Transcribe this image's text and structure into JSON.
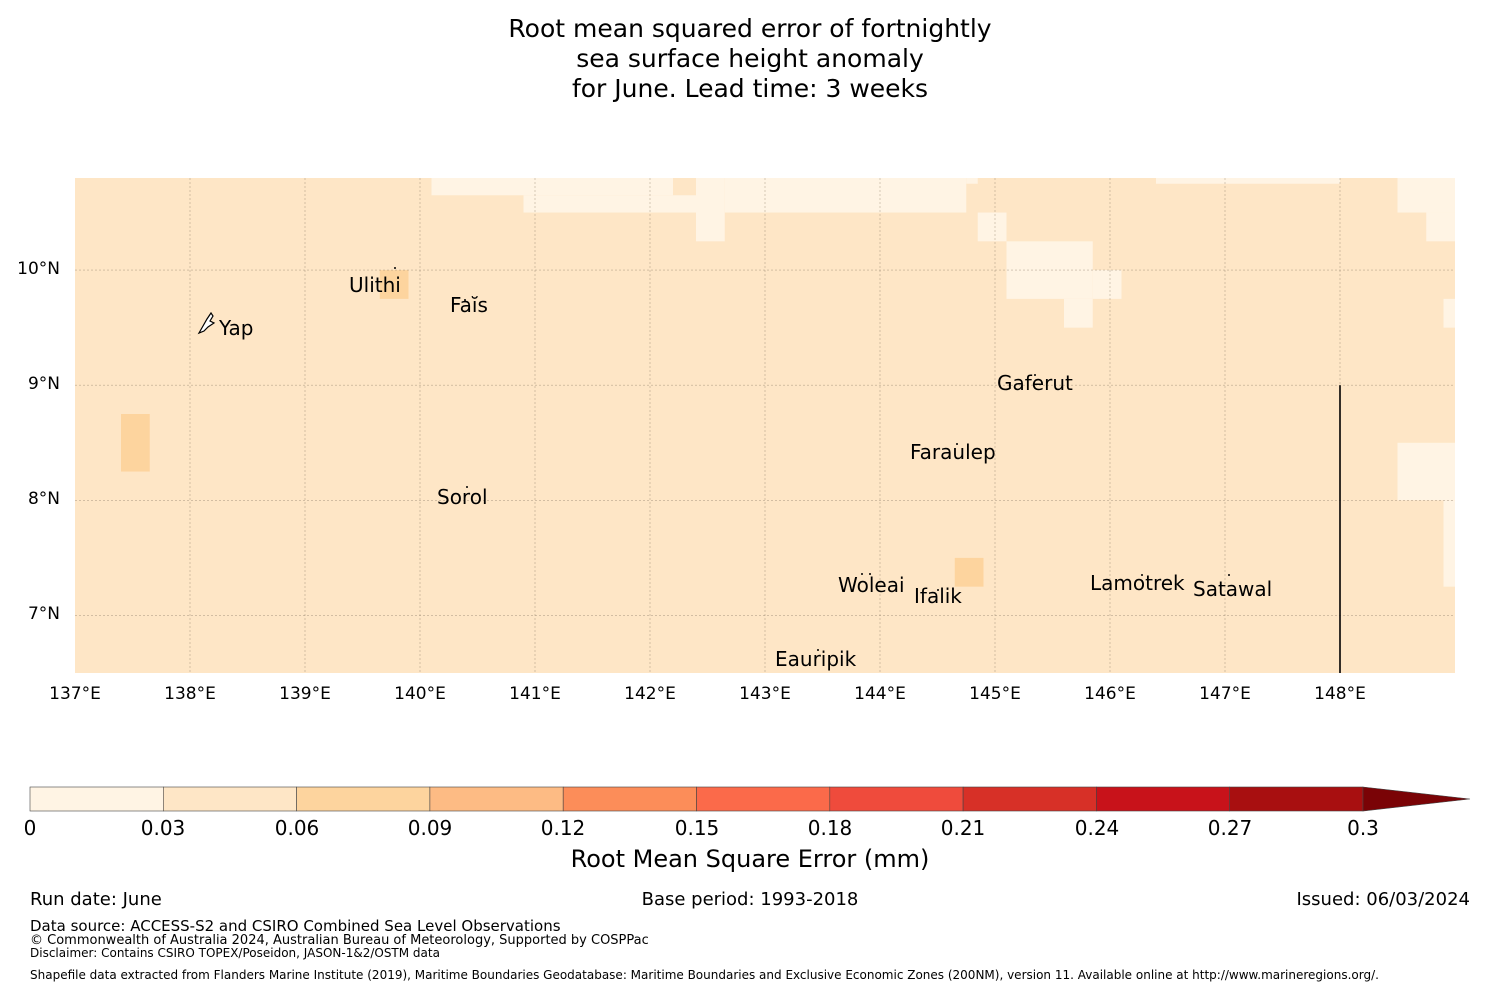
{
  "title": {
    "line1": "Root mean squared error of fortnightly",
    "line2": "sea surface height anomaly",
    "line3": "for June. Lead time: 3 weeks"
  },
  "map": {
    "lon_range": [
      137,
      149
    ],
    "lat_range": [
      6.5,
      10.8
    ],
    "background_color": "#fee6c6",
    "lat_ticks": [
      "10°N",
      "9°N",
      "8°N",
      "7°N"
    ],
    "lon_ticks": [
      "137°E",
      "138°E",
      "139°E",
      "140°E",
      "141°E",
      "142°E",
      "143°E",
      "144°E",
      "145°E",
      "146°E",
      "147°E",
      "148°E"
    ],
    "places": [
      {
        "name": "Ulithi"
      },
      {
        "name": "Faĭs"
      },
      {
        "name": "Yap"
      },
      {
        "name": "Gaferut"
      },
      {
        "name": "Faraulep"
      },
      {
        "name": "Sorol"
      },
      {
        "name": "Woleai"
      },
      {
        "name": "Ifalik"
      },
      {
        "name": "Lamotrek"
      },
      {
        "name": "Satawal"
      },
      {
        "name": "Eauripik"
      }
    ],
    "boundary_line": {
      "lon": 148.0,
      "lat_from": 6.5,
      "lat_to": 9.0
    },
    "anomaly_cells": [
      {
        "lon": [
          140.1,
          142.2
        ],
        "lat": [
          10.65,
          10.8
        ],
        "value_bin": "0-0.03"
      },
      {
        "lon": [
          140.9,
          142.4
        ],
        "lat": [
          10.5,
          10.65
        ],
        "value_bin": "0-0.03"
      },
      {
        "lon": [
          142.4,
          142.65
        ],
        "lat": [
          10.25,
          10.8
        ],
        "value_bin": "0-0.03"
      },
      {
        "lon": [
          142.65,
          144.75
        ],
        "lat": [
          10.5,
          10.8
        ],
        "value_bin": "0-0.03"
      },
      {
        "lon": [
          144.75,
          144.85
        ],
        "lat": [
          10.75,
          10.8
        ],
        "value_bin": "0-0.03"
      },
      {
        "lon": [
          144.85,
          145.1
        ],
        "lat": [
          10.25,
          10.5
        ],
        "value_bin": "0-0.03"
      },
      {
        "lon": [
          145.1,
          145.85
        ],
        "lat": [
          9.75,
          10.25
        ],
        "value_bin": "0-0.03"
      },
      {
        "lon": [
          145.85,
          146.1
        ],
        "lat": [
          9.75,
          10.0
        ],
        "value_bin": "0-0.03"
      },
      {
        "lon": [
          145.6,
          145.85
        ],
        "lat": [
          9.5,
          9.75
        ],
        "value_bin": "0-0.03"
      },
      {
        "lon": [
          146.4,
          148.0
        ],
        "lat": [
          10.75,
          10.8
        ],
        "value_bin": "0-0.03"
      },
      {
        "lon": [
          148.5,
          149.0
        ],
        "lat": [
          10.5,
          10.8
        ],
        "value_bin": "0-0.03"
      },
      {
        "lon": [
          148.75,
          149.0
        ],
        "lat": [
          10.25,
          10.5
        ],
        "value_bin": "0-0.03"
      },
      {
        "lon": [
          149.0,
          149.0
        ],
        "lat": [
          9.75,
          10.25
        ],
        "value_bin": "0-0.03"
      },
      {
        "lon": [
          148.9,
          149.0
        ],
        "lat": [
          9.5,
          9.75
        ],
        "value_bin": "0-0.03"
      },
      {
        "lon": [
          148.5,
          149.0
        ],
        "lat": [
          8.0,
          8.5
        ],
        "value_bin": "0-0.03"
      },
      {
        "lon": [
          148.9,
          149.0
        ],
        "lat": [
          7.25,
          8.0
        ],
        "value_bin": "0-0.03"
      },
      {
        "lon": [
          137.4,
          137.65
        ],
        "lat": [
          8.25,
          8.75
        ],
        "value_bin": "0.06-0.09"
      },
      {
        "lon": [
          139.65,
          139.9
        ],
        "lat": [
          9.75,
          10.0
        ],
        "value_bin": "0.06-0.09"
      },
      {
        "lon": [
          144.65,
          144.9
        ],
        "lat": [
          7.25,
          7.5
        ],
        "value_bin": "0.06-0.09"
      }
    ]
  },
  "colorbar": {
    "label": "Root Mean Square Error (mm)",
    "ticks": [
      "0",
      "0.03",
      "0.06",
      "0.09",
      "0.12",
      "0.15",
      "0.18",
      "0.21",
      "0.24",
      "0.27",
      "0.3"
    ],
    "colors": [
      "#fff4e4",
      "#fee6c6",
      "#fdd49e",
      "#fdbb84",
      "#fc8d59",
      "#fb6a4a",
      "#ef4b3c",
      "#d73027",
      "#c8121a",
      "#a80f10",
      "#7a0306"
    ],
    "extend": "max"
  },
  "footer": {
    "run_date": "Run date: June",
    "base_period": "Base period: 1993-2018",
    "issued": "Issued: 06/03/2024",
    "data_source": "Data source: ACCESS-S2 and CSIRO Combined Sea Level Observations",
    "copyright": "© Commonwealth of Australia 2024, Australian Bureau of Meteorology, Supported by COSPPac",
    "disclaimer": "Disclaimer: Contains CSIRO TOPEX/Poseidon, JASON-1&2/OSTM data",
    "shapefile": "Shapefile data extracted from Flanders Marine Institute (2019), Maritime Boundaries Geodatabase: Maritime Boundaries and Exclusive Economic Zones (200NM), version 11. Available online at http://www.marineregions.org/."
  }
}
